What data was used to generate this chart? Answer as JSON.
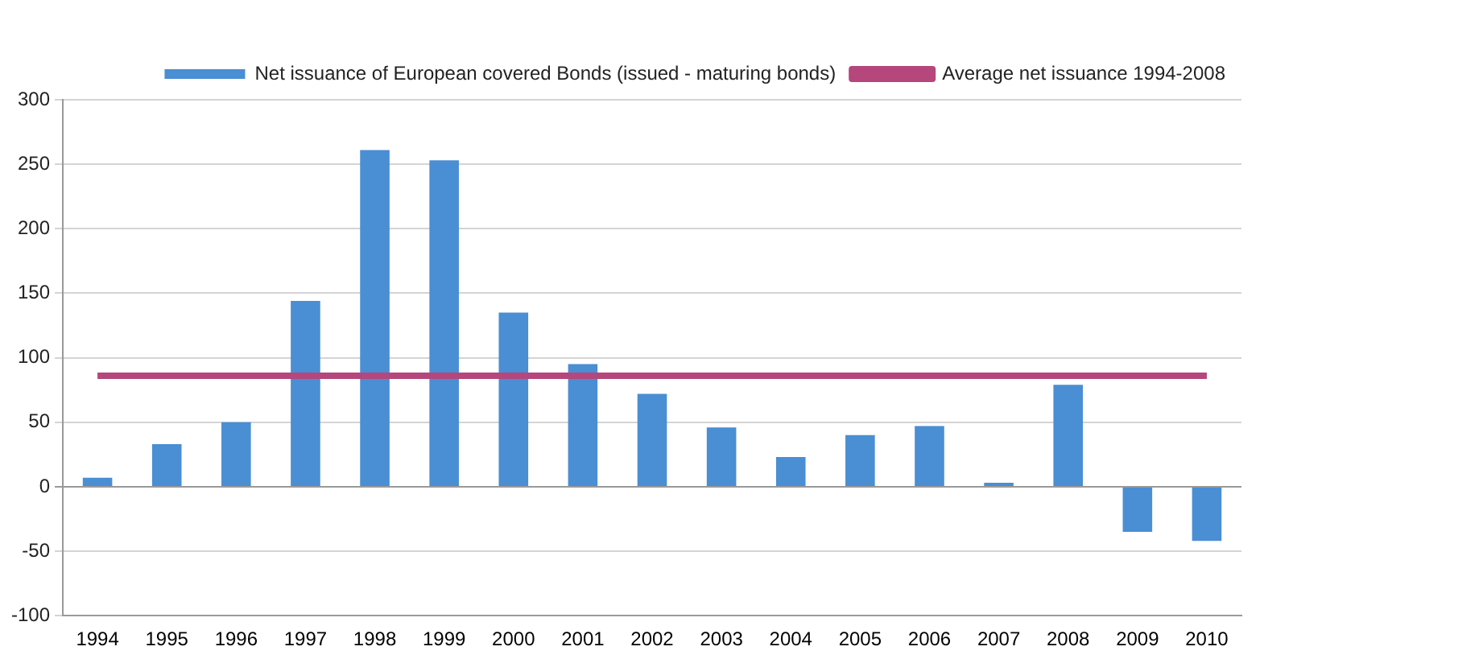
{
  "chart_data": {
    "type": "bar",
    "categories": [
      "1994",
      "1995",
      "1996",
      "1997",
      "1998",
      "1999",
      "2000",
      "2001",
      "2002",
      "2003",
      "2004",
      "2005",
      "2006",
      "2007",
      "2008",
      "2009",
      "2010"
    ],
    "series": [
      {
        "name": "Net issuance of European covered Bonds (issued - maturing bonds)",
        "color": "#4a8ed3",
        "values": [
          7,
          33,
          50,
          144,
          261,
          253,
          135,
          95,
          72,
          46,
          23,
          40,
          47,
          3,
          79,
          -35,
          -42
        ]
      },
      {
        "name": "Average net issuance 1994-2008",
        "type": "line",
        "color": "#b5477c",
        "values": [
          86,
          86,
          86,
          86,
          86,
          86,
          86,
          86,
          86,
          86,
          86,
          86,
          86,
          86,
          86,
          86,
          86
        ]
      }
    ],
    "ylim": [
      -100,
      300
    ],
    "yticks": [
      -100,
      -50,
      0,
      50,
      100,
      150,
      200,
      250,
      300
    ],
    "grid": "y",
    "legend": "top",
    "marker": "none"
  }
}
